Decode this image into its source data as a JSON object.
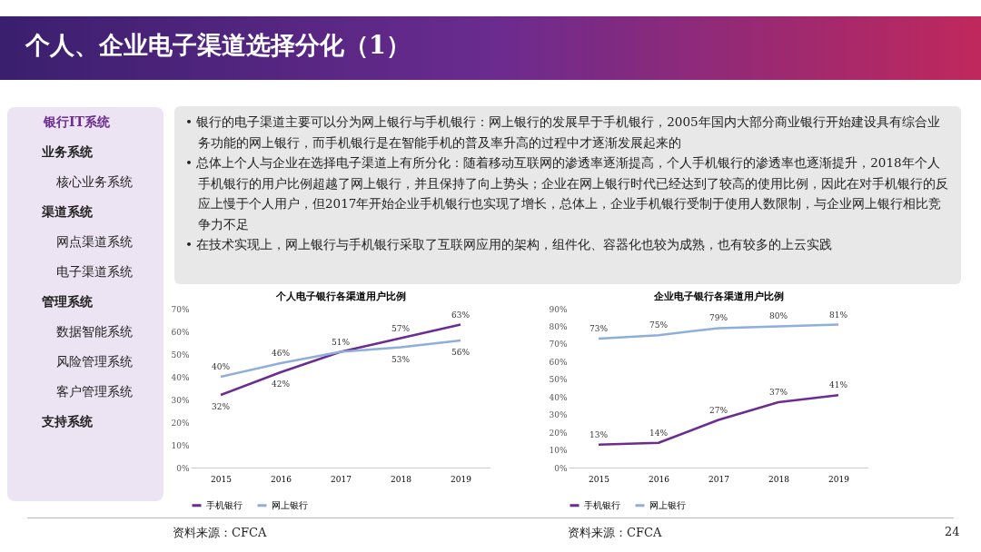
{
  "chart_data": [
    {
      "type": "other",
      "title": "个人、企业电子渠道选择分化（1）",
      "annotations": [
        "• 银行的电子渠道主要可以分为网上银行与手机银行：网上银行的发展早于手机银行，2005年国内大部分商业银行开始建设具有综合业务功能的网上银行，而手机银行是在智能手机的普及率升高的过程中才逐渐发展起来的",
        "• 总体上个人与企业在选择电子渠道上有所分化：随着移动互联网的渗透率逐渐提高，个人手机银行的渗透率也逐渐提升，2018年个人手机银行的用户比例超越了网上银行，并且保持了向上势头；企业在网上银行时代已经达到了较高的使用比例，因此在对手机银行的反应上慢于个人用户，但2017年开始企业手机银行也实现了增长，总体上，企业手机银行受制于使用人数限制，与企业网上银行相比竞争力不足",
        "• 在技术实现上，网上银行与手机银行采取了互联网应用的架构，组件化、容器化也较为成熟，也有较多的上云实践"
      ]
    },
    {
      "type": "other",
      "annotations": [
        "银行IT系统",
        "业务系统",
        "核心业务系统",
        "渠道系统",
        "网点渠道系统",
        "电子渠道系统",
        "管理系统",
        "数据智能系统",
        "风险管理系统",
        "客户管理系统",
        "支持系统"
      ]
    },
    {
      "type": "line",
      "title": "个人电子银行各渠道用户比例",
      "categories": [
        "2015",
        "2016",
        "2017",
        "2018",
        "2019"
      ],
      "series": [
        {
          "name": "手机银行",
          "color": "#6b2d8f",
          "values": [
            32,
            42,
            51,
            57,
            63
          ],
          "value_labels": [
            "32%",
            "42%",
            null,
            "57%",
            "63%"
          ]
        },
        {
          "name": "网上银行",
          "color": "#8eaedb",
          "values": [
            40,
            46,
            51,
            53,
            56
          ],
          "value_labels": [
            "40%",
            "46%",
            "51%",
            "53%",
            "56%"
          ]
        }
      ],
      "ylim": [
        0,
        70
      ],
      "yticks": [
        {
          "value": 0,
          "label": "0%"
        },
        {
          "value": 10,
          "label": "10%"
        },
        {
          "value": 20,
          "label": "20%"
        },
        {
          "value": 30,
          "label": "30%"
        },
        {
          "value": 40,
          "label": "40%"
        },
        {
          "value": 50,
          "label": "50%"
        },
        {
          "value": 60,
          "label": "60%"
        },
        {
          "value": 70,
          "label": "70%"
        }
      ],
      "grid": false,
      "legend": "bottom",
      "annotations": [
        "资料来源：CFCA"
      ]
    },
    {
      "type": "line",
      "title": "企业电子银行各渠道用户比例",
      "categories": [
        "2015",
        "2016",
        "2017",
        "2018",
        "2019"
      ],
      "series": [
        {
          "name": "手机银行",
          "color": "#6b2d8f",
          "values": [
            13,
            14,
            27,
            37,
            41
          ],
          "value_labels": [
            "13%",
            "14%",
            "27%",
            "37%",
            "41%"
          ]
        },
        {
          "name": "网上银行",
          "color": "#8eaedb",
          "values": [
            73,
            75,
            79,
            80,
            81
          ],
          "value_labels": [
            "73%",
            "75%",
            "79%",
            "80%",
            "81%"
          ]
        }
      ],
      "ylim": [
        0,
        90
      ],
      "yticks": [
        {
          "value": 0,
          "label": "0%"
        },
        {
          "value": 10,
          "label": "10%"
        },
        {
          "value": 20,
          "label": "20%"
        },
        {
          "value": 30,
          "label": "30%"
        },
        {
          "value": 40,
          "label": "40%"
        },
        {
          "value": 50,
          "label": "50%"
        },
        {
          "value": 60,
          "label": "60%"
        },
        {
          "value": 70,
          "label": "70%"
        },
        {
          "value": 80,
          "label": "80%"
        },
        {
          "value": 90,
          "label": "90%"
        }
      ],
      "grid": false,
      "legend": "bottom",
      "annotations": [
        "资料来源：CFCA",
        "24"
      ]
    }
  ]
}
